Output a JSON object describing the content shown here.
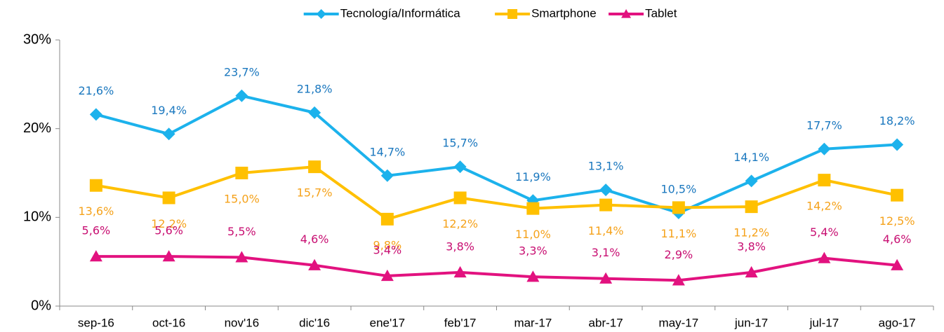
{
  "chart_data": {
    "type": "line",
    "categories": [
      "sep-16",
      "oct-16",
      "nov'16",
      "dic'16",
      "ene'17",
      "feb'17",
      "mar-17",
      "abr-17",
      "may-17",
      "jun-17",
      "jul-17",
      "ago-17"
    ],
    "series": [
      {
        "name": "Tecnología/Informática",
        "color": "#1cb2ec",
        "label_color": "#1b78bf",
        "marker": "diamond",
        "values": [
          21.6,
          19.4,
          23.7,
          21.8,
          14.7,
          15.7,
          11.9,
          13.1,
          10.5,
          14.1,
          17.7,
          18.2
        ],
        "value_labels": [
          "21,6%",
          "19,4%",
          "23,7%",
          "21,8%",
          "14,7%",
          "15,7%",
          "11,9%",
          "13,1%",
          "10,5%",
          "14,1%",
          "17,7%",
          "18,2%"
        ]
      },
      {
        "name": "Smartphone",
        "color": "#ffc000",
        "label_color": "#f5a21b",
        "marker": "square",
        "values": [
          13.6,
          12.2,
          15.0,
          15.7,
          9.8,
          12.2,
          11.0,
          11.4,
          11.1,
          11.2,
          14.2,
          12.5
        ],
        "value_labels": [
          "13,6%",
          "12,2%",
          "15,0%",
          "15,7%",
          "9,8%",
          "12,2%",
          "11,0%",
          "11,4%",
          "11,1%",
          "11,2%",
          "14,2%",
          "12,5%"
        ]
      },
      {
        "name": "Tablet",
        "color": "#e2127f",
        "label_color": "#c80f72",
        "marker": "triangle",
        "values": [
          5.6,
          5.6,
          5.5,
          4.6,
          3.4,
          3.8,
          3.3,
          3.1,
          2.9,
          3.8,
          5.4,
          4.6
        ],
        "value_labels": [
          "5,6%",
          "5,6%",
          "5,5%",
          "4,6%",
          "3,4%",
          "3,8%",
          "3,3%",
          "3,1%",
          "2,9%",
          "3,8%",
          "5,4%",
          "4,6%"
        ]
      }
    ],
    "ylim": [
      0,
      30
    ],
    "yticks": [
      {
        "value": 0,
        "label": "0%"
      },
      {
        "value": 10,
        "label": "10%"
      },
      {
        "value": 20,
        "label": "20%"
      },
      {
        "value": 30,
        "label": "30%"
      }
    ],
    "legend": "top",
    "grid": false
  }
}
